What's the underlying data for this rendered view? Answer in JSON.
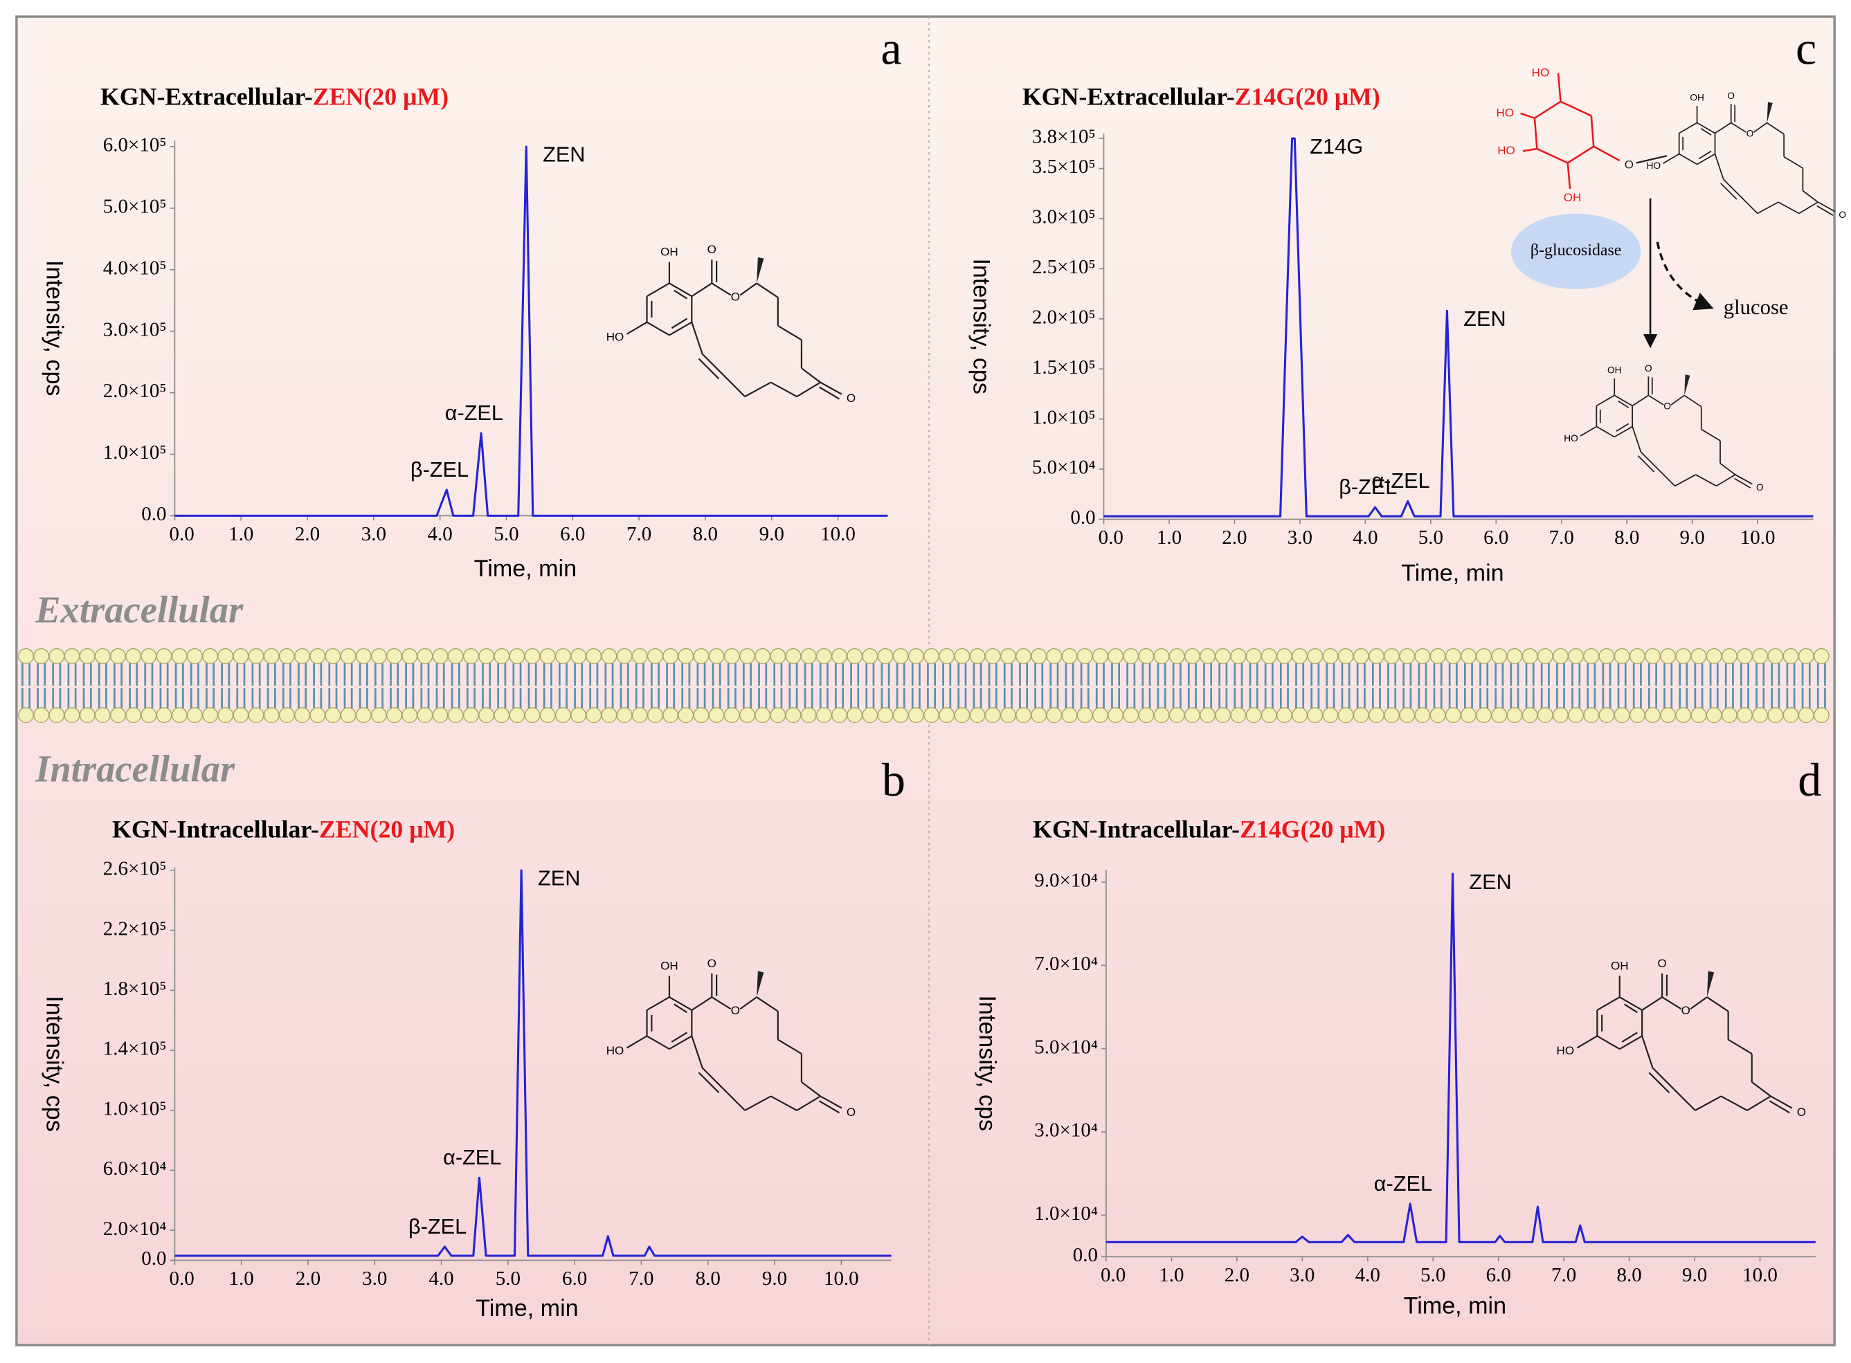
{
  "chart_data": [
    {
      "type": "line",
      "panel": "a",
      "title_parts": [
        "KGN-Extracellular-",
        "ZEN(20 μM)"
      ],
      "title_colors": [
        "#000000",
        "#e8191c"
      ],
      "x_label": "Time, min",
      "y_label": "Intensity, cps",
      "color": "#2424d4",
      "x": [
        0,
        3.95,
        4.1,
        4.2,
        4.5,
        4.62,
        4.72,
        5.18,
        5.3,
        5.4,
        10.75
      ],
      "values": [
        0,
        0,
        42000,
        0,
        0,
        134000,
        0,
        0,
        600000,
        0,
        0
      ],
      "peaks": [
        {
          "label": "β-ZEL",
          "x": 4.1
        },
        {
          "label": "α-ZEL",
          "x": 4.62
        },
        {
          "label": "ZEN",
          "x": 5.3
        }
      ],
      "xlim": [
        0,
        10.75
      ],
      "ylim": [
        0,
        610000
      ],
      "xticks": [
        {
          "value": 0,
          "label": "0.0"
        },
        {
          "value": 1,
          "label": "1.0"
        },
        {
          "value": 2,
          "label": "2.0"
        },
        {
          "value": 3,
          "label": "3.0"
        },
        {
          "value": 4,
          "label": "4.0"
        },
        {
          "value": 5,
          "label": "5.0"
        },
        {
          "value": 6,
          "label": "6.0"
        },
        {
          "value": 7,
          "label": "7.0"
        },
        {
          "value": 8,
          "label": "8.0"
        },
        {
          "value": 9,
          "label": "9.0"
        },
        {
          "value": 10,
          "label": "10.0"
        }
      ],
      "yticks": [
        {
          "value": 0,
          "label": "0.0"
        },
        {
          "value": 100000,
          "label": "1.0×10⁵"
        },
        {
          "value": 200000,
          "label": "2.0×10⁵"
        },
        {
          "value": 300000,
          "label": "3.0×10⁵"
        },
        {
          "value": 400000,
          "label": "4.0×10⁵"
        },
        {
          "value": 500000,
          "label": "5.0×10⁵"
        },
        {
          "value": 600000,
          "label": "6.0×10⁵"
        }
      ]
    },
    {
      "type": "line",
      "panel": "b",
      "title_parts": [
        "KGN-Intracellular-",
        "ZEN(20 μM)"
      ],
      "title_colors": [
        "#000000",
        "#e8191c"
      ],
      "x_label": "Time, min",
      "y_label": "Intensity, cps",
      "color": "#2424d4",
      "x": [
        0,
        3.95,
        4.05,
        4.15,
        4.48,
        4.57,
        4.67,
        5.1,
        5.2,
        5.3,
        6.42,
        6.5,
        6.58,
        7.05,
        7.12,
        7.2,
        10.75
      ],
      "values": [
        3000,
        3000,
        9000,
        3000,
        3000,
        55000,
        3000,
        3000,
        260000,
        3000,
        3000,
        16000,
        3000,
        3000,
        9000,
        3000,
        3000
      ],
      "peaks": [
        {
          "label": "β-ZEL",
          "x": 4.05
        },
        {
          "label": "α-ZEL",
          "x": 4.57
        },
        {
          "label": "ZEN",
          "x": 5.2
        }
      ],
      "xlim": [
        0,
        10.75
      ],
      "ylim": [
        0,
        262000
      ],
      "xticks": [
        {
          "value": 0,
          "label": "0.0"
        },
        {
          "value": 1,
          "label": "1.0"
        },
        {
          "value": 2,
          "label": "2.0"
        },
        {
          "value": 3,
          "label": "3.0"
        },
        {
          "value": 4,
          "label": "4.0"
        },
        {
          "value": 5,
          "label": "5.0"
        },
        {
          "value": 6,
          "label": "6.0"
        },
        {
          "value": 7,
          "label": "7.0"
        },
        {
          "value": 8,
          "label": "8.0"
        },
        {
          "value": 9,
          "label": "9.0"
        },
        {
          "value": 10,
          "label": "10.0"
        }
      ],
      "yticks": [
        {
          "value": 0,
          "label": "0.0"
        },
        {
          "value": 20000,
          "label": "2.0×10⁴"
        },
        {
          "value": 60000,
          "label": "6.0×10⁴"
        },
        {
          "value": 100000,
          "label": "1.0×10⁵"
        },
        {
          "value": 140000,
          "label": "1.4×10⁵"
        },
        {
          "value": 180000,
          "label": "1.8×10⁵"
        },
        {
          "value": 220000,
          "label": "2.2×10⁵"
        },
        {
          "value": 260000,
          "label": "2.6×10⁵"
        }
      ]
    },
    {
      "type": "line",
      "panel": "c",
      "title_parts": [
        "KGN-Extracellular-",
        "Z14G(20 μM)"
      ],
      "title_colors": [
        "#000000",
        "#e8191c"
      ],
      "x_label": "Time, min",
      "y_label": "Intensity, cps",
      "color": "#2424d4",
      "x": [
        0,
        2.7,
        2.88,
        2.92,
        3.1,
        4.05,
        4.15,
        4.25,
        4.55,
        4.65,
        4.75,
        5.15,
        5.25,
        5.35,
        10.85
      ],
      "values": [
        3000,
        3000,
        380000,
        380000,
        3000,
        3000,
        12000,
        3000,
        3000,
        18000,
        3000,
        3000,
        208000,
        3000,
        3000
      ],
      "peaks": [
        {
          "label": "Z14G",
          "x": 2.9
        },
        {
          "label": "β-ZEL",
          "x": 4.15
        },
        {
          "label": "α-ZEL",
          "x": 4.65
        },
        {
          "label": "ZEN",
          "x": 5.25
        }
      ],
      "xlim": [
        0,
        10.85
      ],
      "ylim": [
        0,
        385000
      ],
      "xticks": [
        {
          "value": 0,
          "label": "0.0"
        },
        {
          "value": 1,
          "label": "1.0"
        },
        {
          "value": 2,
          "label": "2.0"
        },
        {
          "value": 3,
          "label": "3.0"
        },
        {
          "value": 4,
          "label": "4.0"
        },
        {
          "value": 5,
          "label": "5.0"
        },
        {
          "value": 6,
          "label": "6.0"
        },
        {
          "value": 7,
          "label": "7.0"
        },
        {
          "value": 8,
          "label": "8.0"
        },
        {
          "value": 9,
          "label": "9.0"
        },
        {
          "value": 10,
          "label": "10.0"
        }
      ],
      "yticks": [
        {
          "value": 0,
          "label": "0.0"
        },
        {
          "value": 50000,
          "label": "5.0×10⁴"
        },
        {
          "value": 100000,
          "label": "1.0×10⁵"
        },
        {
          "value": 150000,
          "label": "1.5×10⁵"
        },
        {
          "value": 200000,
          "label": "2.0×10⁵"
        },
        {
          "value": 250000,
          "label": "2.5×10⁵"
        },
        {
          "value": 300000,
          "label": "3.0×10⁵"
        },
        {
          "value": 350000,
          "label": "3.5×10⁵"
        },
        {
          "value": 380000,
          "label": "3.8×10⁵"
        }
      ]
    },
    {
      "type": "line",
      "panel": "d",
      "title_parts": [
        "KGN-Intracellular-",
        "Z14G(20 μM)"
      ],
      "title_colors": [
        "#000000",
        "#e8191c"
      ],
      "x_label": "Time, min",
      "y_label": "Intensity, cps",
      "color": "#2424d4",
      "x": [
        0,
        2.9,
        3.0,
        3.1,
        3.6,
        3.7,
        3.8,
        4.55,
        4.65,
        4.75,
        5.2,
        5.3,
        5.4,
        5.95,
        6.02,
        6.1,
        6.52,
        6.6,
        6.68,
        7.18,
        7.25,
        7.32,
        10.85
      ],
      "values": [
        3500,
        3500,
        4800,
        3500,
        3500,
        5200,
        3500,
        3500,
        12700,
        3500,
        3500,
        92000,
        3500,
        3500,
        5000,
        3500,
        3500,
        12000,
        3500,
        3500,
        7500,
        3500,
        3500
      ],
      "peaks": [
        {
          "label": "α-ZEL",
          "x": 4.65
        },
        {
          "label": "ZEN",
          "x": 5.3
        }
      ],
      "xlim": [
        0,
        10.85
      ],
      "ylim": [
        0,
        93000
      ],
      "xticks": [
        {
          "value": 0,
          "label": "0.0"
        },
        {
          "value": 1,
          "label": "1.0"
        },
        {
          "value": 2,
          "label": "2.0"
        },
        {
          "value": 3,
          "label": "3.0"
        },
        {
          "value": 4,
          "label": "4.0"
        },
        {
          "value": 5,
          "label": "5.0"
        },
        {
          "value": 6,
          "label": "6.0"
        },
        {
          "value": 7,
          "label": "7.0"
        },
        {
          "value": 8,
          "label": "8.0"
        },
        {
          "value": 9,
          "label": "9.0"
        },
        {
          "value": 10,
          "label": "10.0"
        }
      ],
      "yticks": [
        {
          "value": 0,
          "label": "0.0"
        },
        {
          "value": 10000,
          "label": "1.0×10⁴"
        },
        {
          "value": 30000,
          "label": "3.0×10⁴"
        },
        {
          "value": 50000,
          "label": "5.0×10⁴"
        },
        {
          "value": 70000,
          "label": "7.0×10⁴"
        },
        {
          "value": 90000,
          "label": "9.0×10⁴"
        }
      ]
    }
  ],
  "membrane_labels": [
    "Extracellular",
    "Intracellular"
  ],
  "structure": {
    "atoms": [
      "OH",
      "O",
      "O",
      "HO",
      "O"
    ]
  },
  "pathway": {
    "enzyme": "β-glucosidase",
    "product": "glucose",
    "glucose_atoms": [
      "HO",
      "HO",
      "HO",
      "OH",
      "O"
    ]
  }
}
